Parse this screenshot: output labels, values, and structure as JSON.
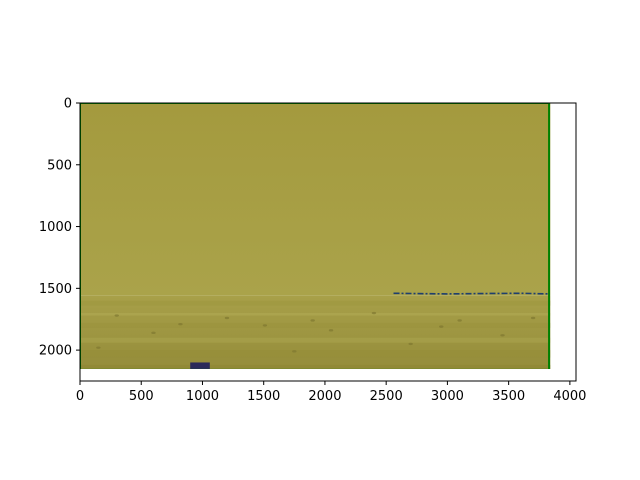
{
  "figure": {
    "background": "#ffffff"
  },
  "chart_data": {
    "type": "image",
    "title": "",
    "xlabel": "",
    "ylabel": "",
    "xlim": [
      0,
      4050
    ],
    "ylim": [
      2250,
      0
    ],
    "y_inverted": true,
    "grid": false,
    "legend": "none",
    "x_ticks": [
      0,
      500,
      1000,
      1500,
      2000,
      2500,
      3000,
      3500,
      4000
    ],
    "y_ticks": [
      0,
      500,
      1000,
      1500,
      2000
    ],
    "image": {
      "width": 3840,
      "height": 2160,
      "content": "yellow-tinted desert landscape photo: hazy sky above a flat plain with a distant horizon",
      "horizon_y": 1560,
      "tint_colors": {
        "sky_top": "#a49a3e",
        "sky_bottom": "#aaa34a",
        "ground": "#a8a049",
        "ground_dark": "#948c3a"
      }
    },
    "overlays": [
      {
        "name": "frame-outline",
        "type": "rectangle",
        "color": "#008000",
        "x": [
          0,
          3830
        ],
        "y": [
          0,
          2160
        ]
      },
      {
        "name": "horizon-line",
        "type": "line",
        "color": "#1f3f6e",
        "points": [
          [
            2560,
            1540
          ],
          [
            2800,
            1543
          ],
          [
            3000,
            1545
          ],
          [
            3300,
            1542
          ],
          [
            3600,
            1540
          ],
          [
            3830,
            1545
          ]
        ]
      }
    ],
    "features": [
      {
        "name": "dark-object",
        "type": "patch",
        "color": "#2b2a5a",
        "x": [
          900,
          1060
        ],
        "y": [
          2100,
          2160
        ]
      }
    ]
  }
}
